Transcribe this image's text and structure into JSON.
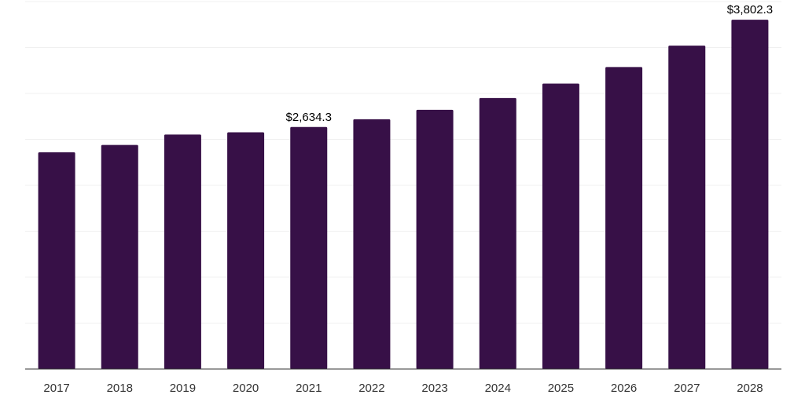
{
  "chart_data": {
    "type": "bar",
    "title": "",
    "xlabel": "",
    "ylabel": "",
    "categories": [
      "2017",
      "2018",
      "2019",
      "2020",
      "2021",
      "2022",
      "2023",
      "2024",
      "2025",
      "2026",
      "2027",
      "2028"
    ],
    "values": [
      2358.6,
      2439.5,
      2551.9,
      2577.4,
      2634.3,
      2719.5,
      2821.8,
      2949.5,
      3106.9,
      3287.8,
      3520.6,
      3802.3
    ],
    "data_labels": [
      {
        "category": "2021",
        "text": "$2,634.3"
      },
      {
        "category": "2028",
        "text": "$3,802.3"
      }
    ],
    "ylim": [
      0,
      4000
    ],
    "gridlines": 8,
    "grid": true,
    "legend": "none",
    "colors": {
      "bar": "#371047",
      "grid": "#f0f0f0",
      "axis": "#333333",
      "tick_text": "#333333",
      "label_text": "#000000"
    }
  }
}
